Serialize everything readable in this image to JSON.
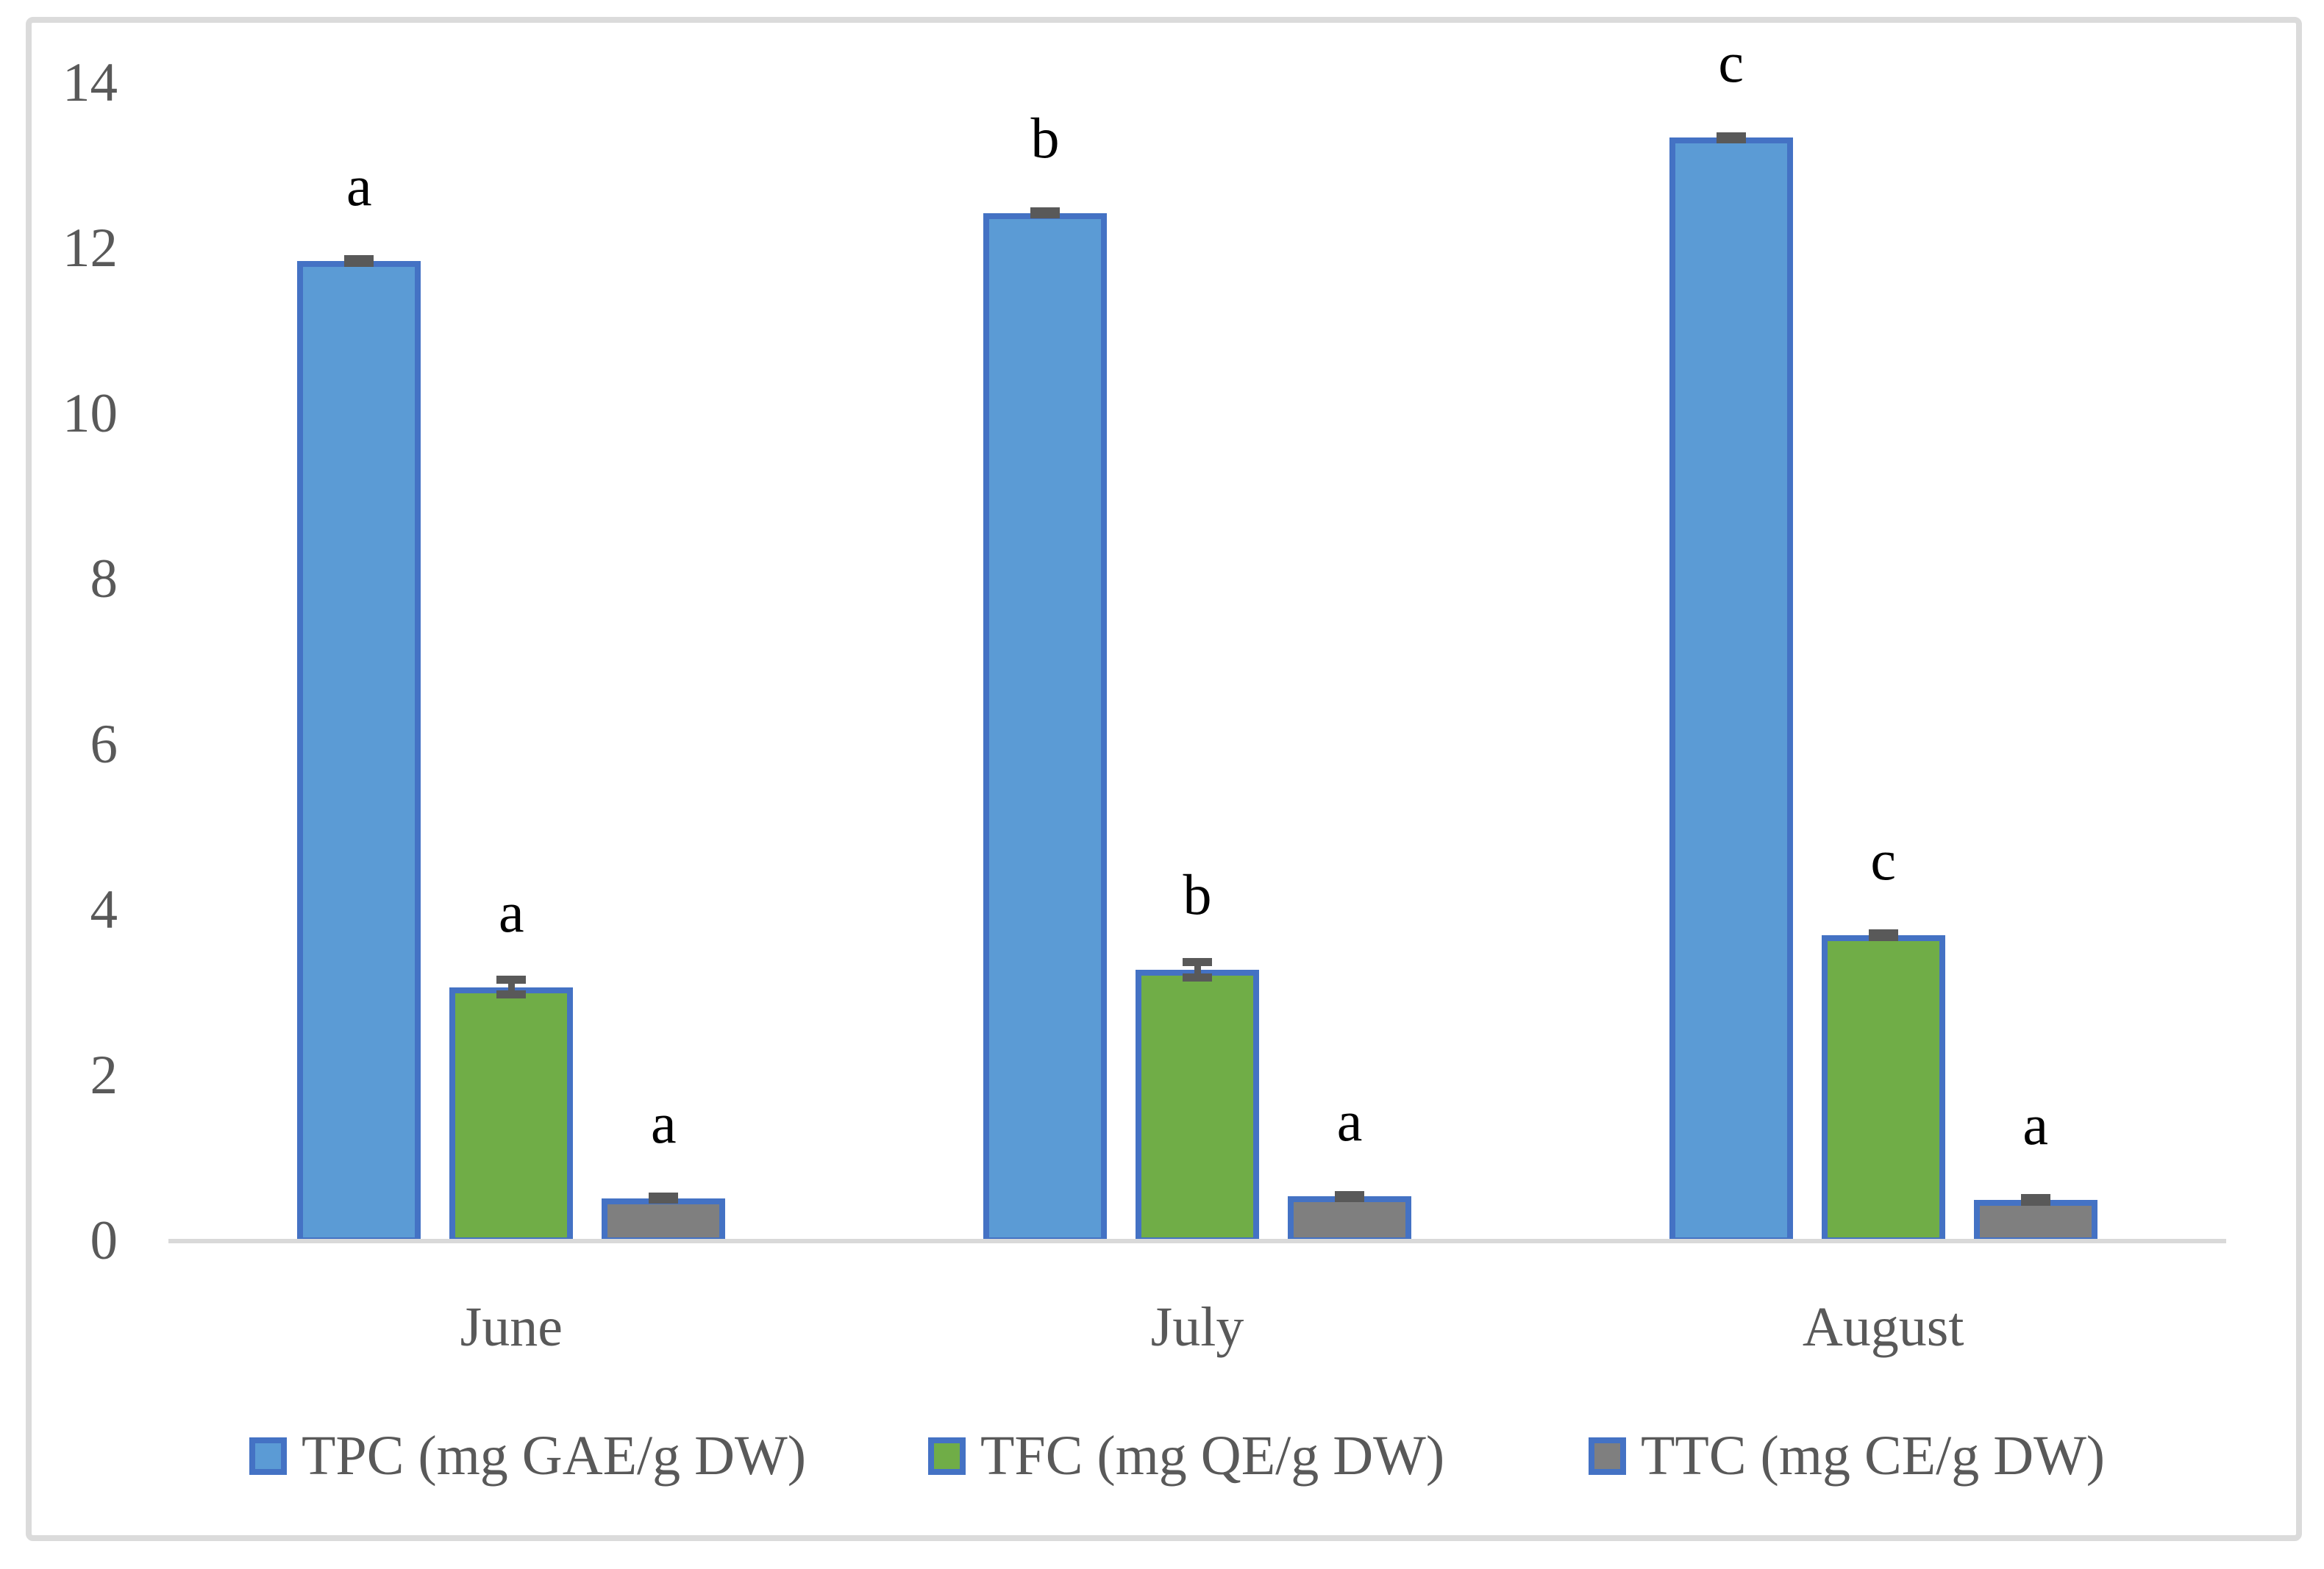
{
  "chart_data": {
    "type": "bar",
    "title": "",
    "xlabel": "",
    "ylabel": "",
    "categories": [
      "June",
      "July",
      "August"
    ],
    "series": [
      {
        "name": "TPC (mg GAE/g DW)",
        "fill_color": "#5B9BD5",
        "border_color": "#4472C4",
        "values": [
          11.85,
          12.43,
          13.34
        ],
        "errors": [
          0.02,
          0.02,
          0.02
        ],
        "letters": [
          "a",
          "b",
          "c"
        ]
      },
      {
        "name": "TFC (mg QE/g DW)",
        "fill_color": "#70AD47",
        "border_color": "#4472C4",
        "values": [
          3.07,
          3.28,
          3.7
        ],
        "errors": [
          0.09,
          0.09,
          0.02
        ],
        "letters": [
          "a",
          "b",
          "c"
        ]
      },
      {
        "name": "TTC (mg CE/g DW)",
        "fill_color": "#7F7F7F",
        "border_color": "#4472C4",
        "values": [
          0.52,
          0.54,
          0.5
        ],
        "errors": [
          0.02,
          0.02,
          0.02
        ],
        "letters": [
          "a",
          "a",
          "a"
        ]
      }
    ],
    "ylim": [
      0,
      14
    ],
    "yticks": [
      0,
      2,
      4,
      6,
      8,
      10,
      12,
      14
    ],
    "grid": false,
    "legend_position": "bottom",
    "error_bar_color": "#595959",
    "axis_line_color": "#D9D9D9",
    "tick_text_color": "#595959",
    "letter_text_color": "#000000",
    "frame_border_color": "#DBDBDB"
  }
}
